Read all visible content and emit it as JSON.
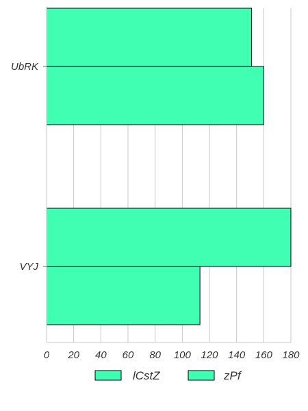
{
  "chart_data": {
    "type": "bar",
    "orientation": "horizontal",
    "categories": [
      "UbRK",
      "VYJ"
    ],
    "series": [
      {
        "name": "lCstZ",
        "values": [
          151,
          181
        ],
        "color": "#40ffb3"
      },
      {
        "name": "zPf",
        "values": [
          160,
          113
        ],
        "color": "#40ffb3"
      }
    ],
    "xticks": [
      "0",
      "20",
      "40",
      "60",
      "80",
      "100",
      "120",
      "140",
      "160",
      "180"
    ],
    "xlim": [
      0,
      180
    ],
    "grid": true,
    "grid_color": "#c8c8c8",
    "bar_edge_color": "#000000",
    "legend_position": "bottom"
  }
}
